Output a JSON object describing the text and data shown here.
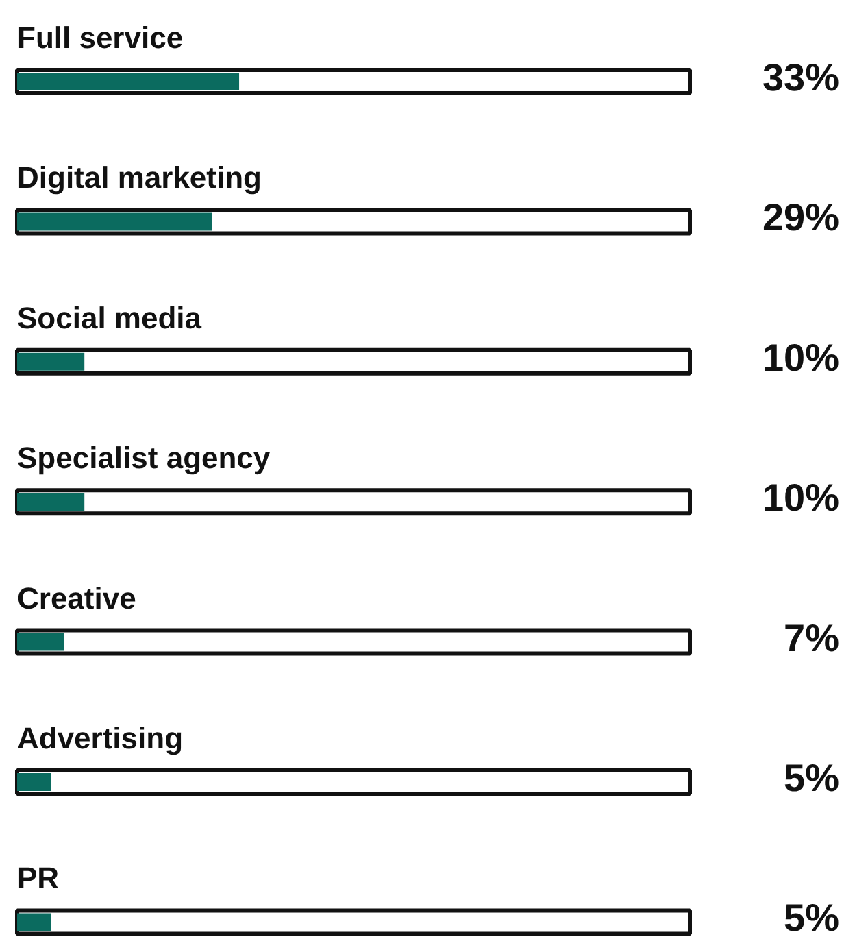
{
  "chart_data": {
    "type": "bar",
    "orientation": "horizontal",
    "categories": [
      "Full service",
      "Digital marketing",
      "Social media",
      "Specialist agency",
      "Creative",
      "Advertising",
      "PR"
    ],
    "values": [
      33,
      29,
      10,
      10,
      7,
      5,
      5
    ],
    "value_labels": [
      "33%",
      "29%",
      "10%",
      "10%",
      "7%",
      "5%",
      "5%"
    ],
    "color": "#0b6b5f",
    "xlim": [
      0,
      100
    ],
    "tick_labels": false,
    "grid": false
  }
}
